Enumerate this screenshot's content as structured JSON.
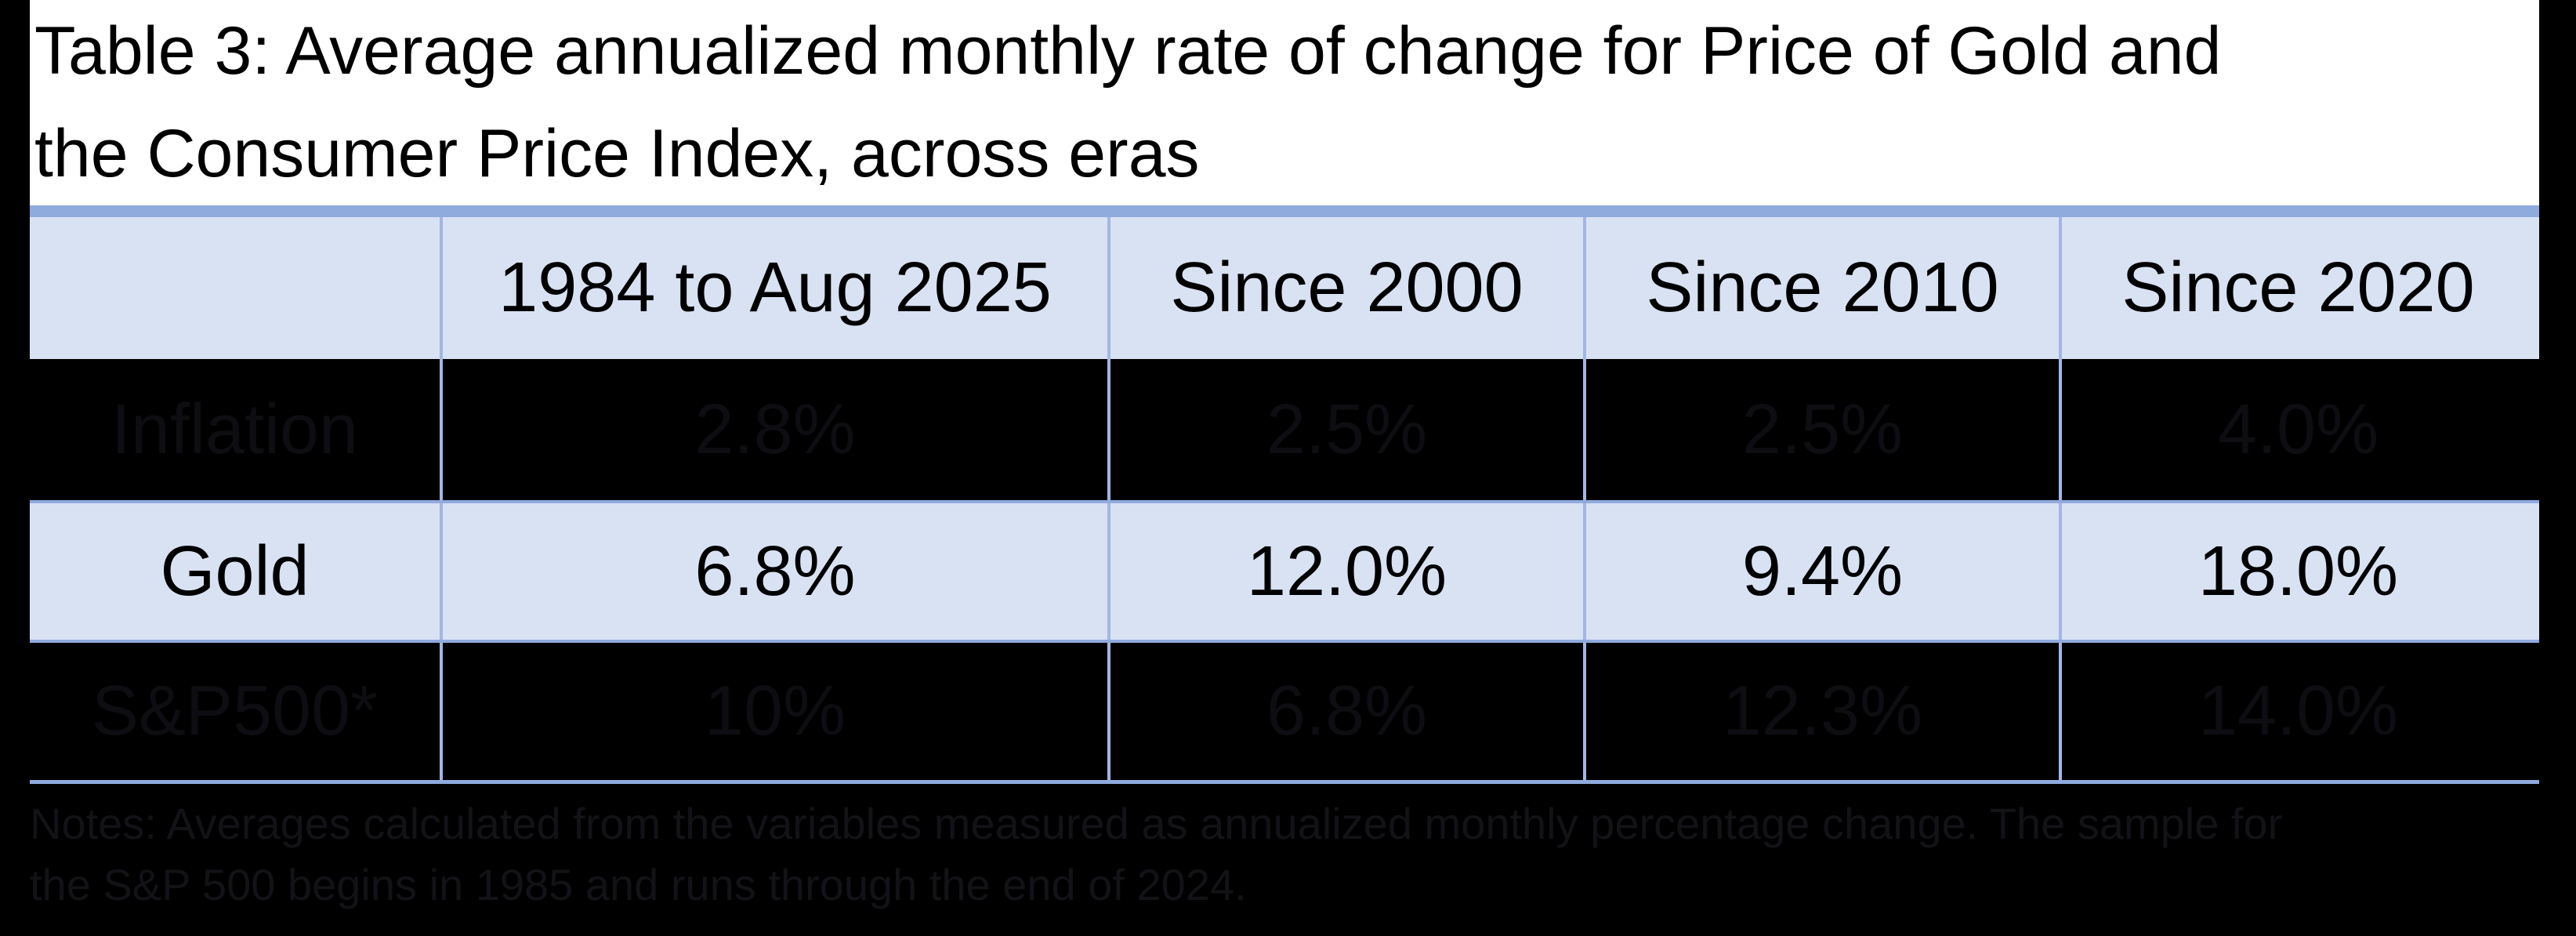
{
  "title": {
    "line1": "Table 3: Average annualized monthly rate of change for Price of Gold and",
    "line2": "the Consumer Price Index, across eras"
  },
  "table": {
    "columns": [
      "",
      "1984 to Aug 2025",
      "Since 2000",
      "Since 2010",
      "Since 2020"
    ],
    "rows": [
      {
        "label": "Inflation",
        "values": [
          "2.8%",
          "2.5%",
          "2.5%",
          "4.0%"
        ]
      },
      {
        "label": "Gold",
        "values": [
          "6.8%",
          "12.0%",
          "9.4%",
          "18.0%"
        ]
      },
      {
        "label": "S&P500*",
        "values": [
          "10%",
          "6.8%",
          "12.3%",
          "14.0%"
        ]
      }
    ]
  },
  "notes": {
    "line1": "Notes: Averages calculated from the variables measured as annualized monthly percentage change. The sample for",
    "line2": "the S&P 500 begins in 1985 and runs through the end of 2024."
  },
  "colors": {
    "accent_bar": "#8faadc",
    "header_fill": "#d9e2f3",
    "divider": "#a3b6e3",
    "page_background": "#000000",
    "dark_row_text": "#0d0d12",
    "notes_text": "#121217"
  }
}
